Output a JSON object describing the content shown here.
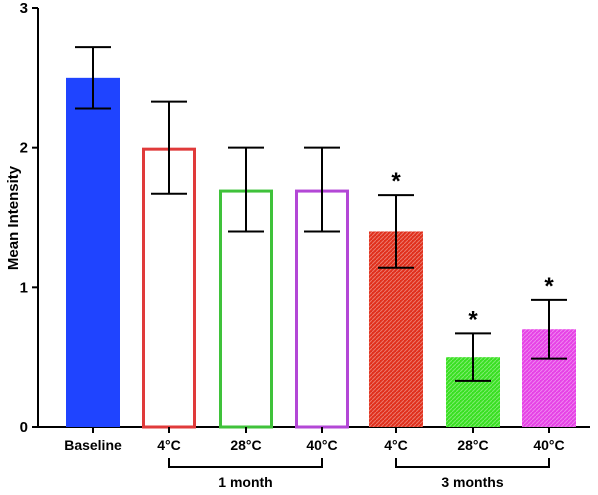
{
  "chart_data": {
    "type": "bar",
    "title": "",
    "xlabel": "",
    "ylabel": "Mean Intensity",
    "ylim": [
      0,
      3
    ],
    "yticks": [
      "0",
      "1",
      "2",
      "3"
    ],
    "grid": false,
    "categories": [
      "Baseline",
      "4°C",
      "28°C",
      "40°C",
      "4°C",
      "28°C",
      "40°C"
    ],
    "values": [
      2.5,
      2.0,
      1.7,
      1.7,
      1.4,
      0.5,
      0.7
    ],
    "error": [
      0.22,
      0.33,
      0.3,
      0.3,
      0.26,
      0.17,
      0.21
    ],
    "significance": [
      "",
      "",
      "",
      "",
      "*",
      "*",
      "*"
    ],
    "bars": [
      {
        "color": "#1f44ff",
        "style": "solid"
      },
      {
        "color": "#e03a3a",
        "style": "outline"
      },
      {
        "color": "#3fc23a",
        "style": "outline"
      },
      {
        "color": "#b347d6",
        "style": "outline"
      },
      {
        "color": "#e0301c",
        "style": "hatched"
      },
      {
        "color": "#39e022",
        "style": "hatched"
      },
      {
        "color": "#e642e6",
        "style": "hatched"
      }
    ],
    "groups": [
      {
        "label": "1 month",
        "from": 1,
        "to": 3
      },
      {
        "label": "3 months",
        "from": 4,
        "to": 6
      }
    ]
  }
}
